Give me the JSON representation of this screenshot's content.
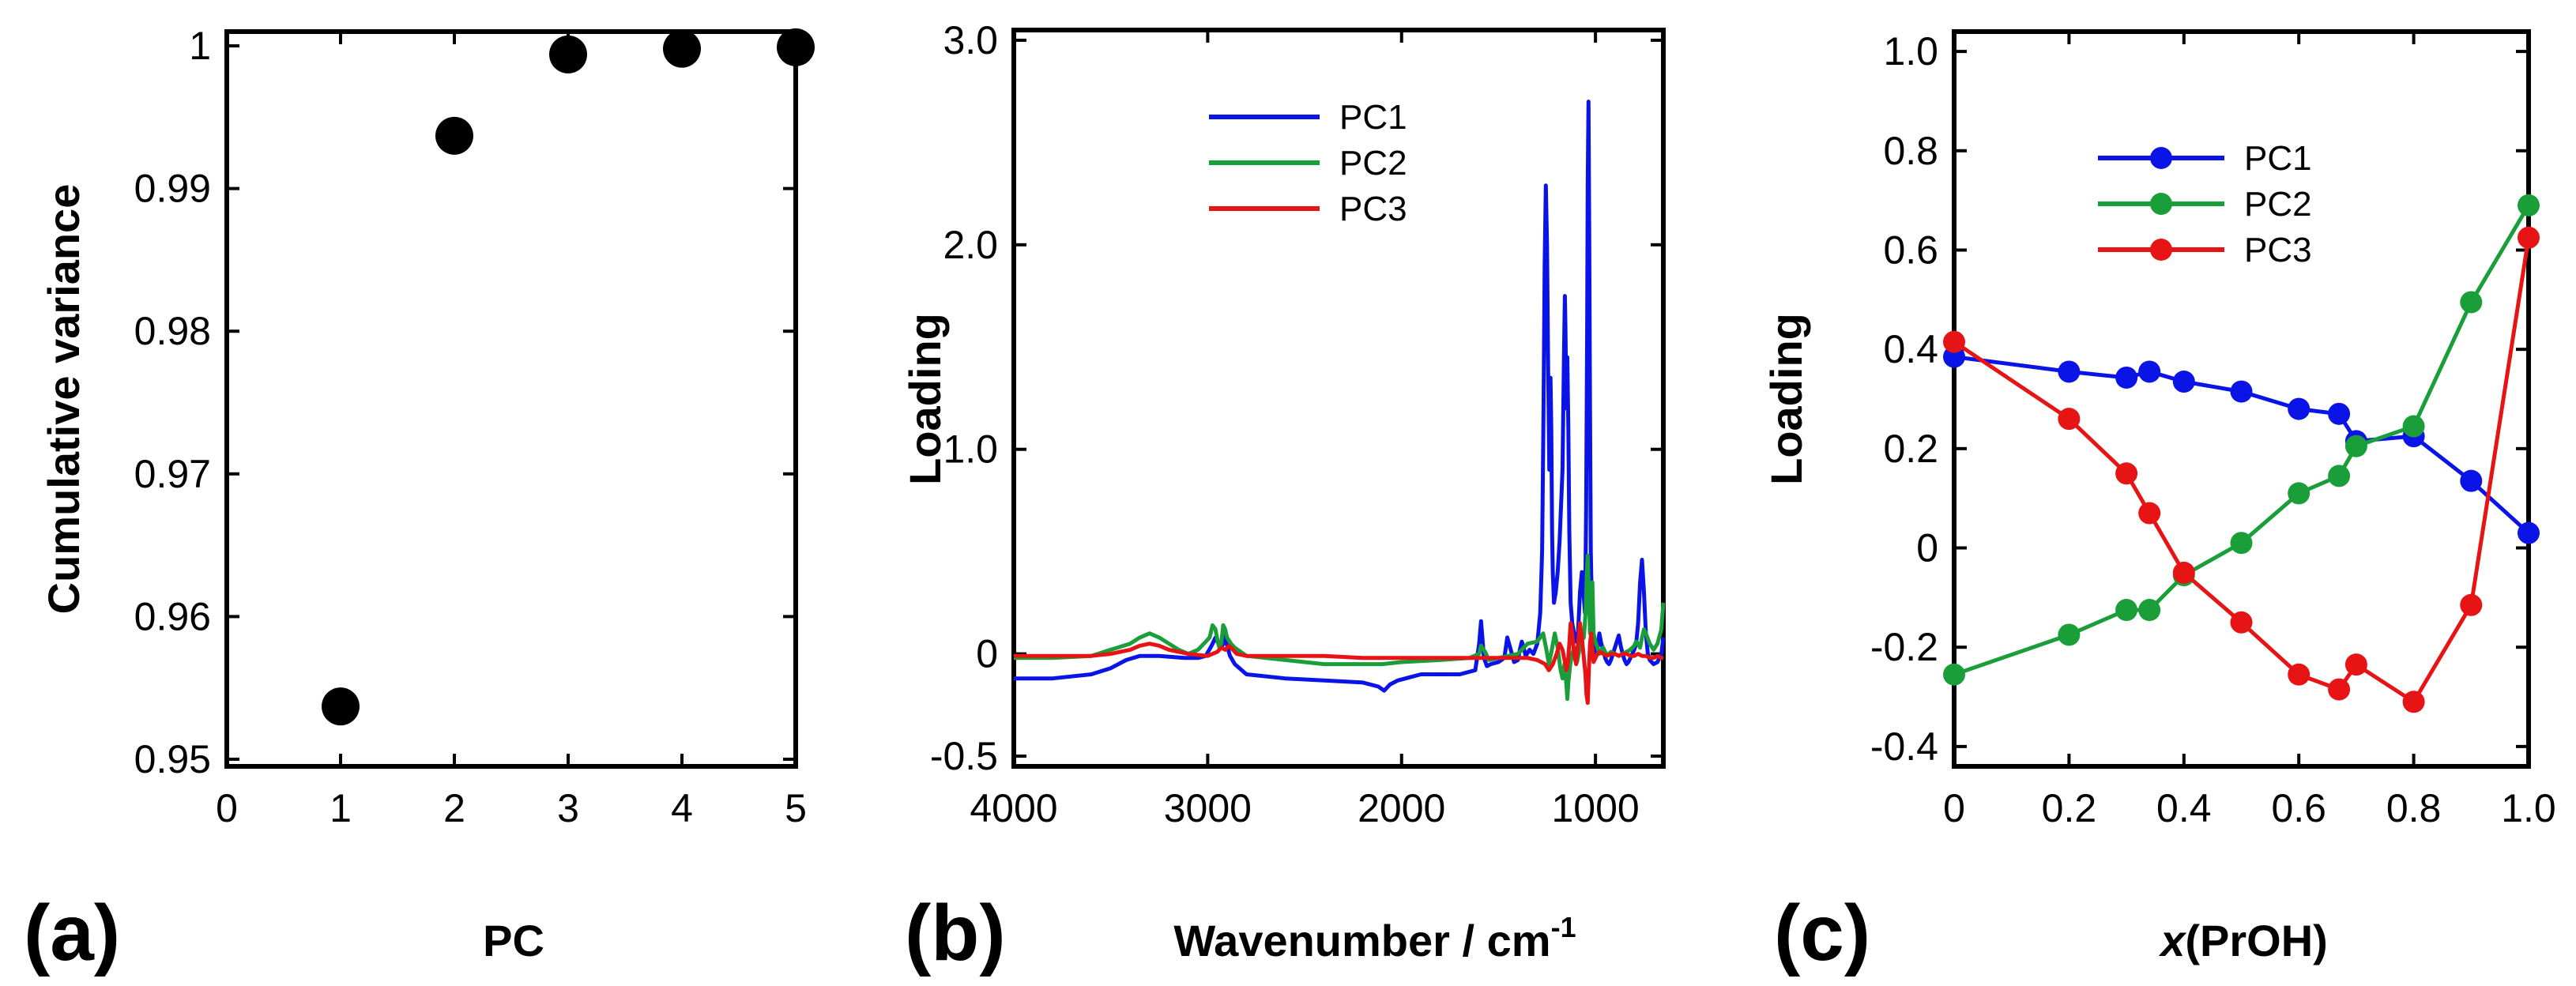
{
  "chart_data": [
    {
      "panel_label": "(a)",
      "type": "scatter",
      "xlabel": "PC",
      "ylabel": "Cumulative variance",
      "xlim": [
        0,
        5
      ],
      "ylim": [
        0.9495,
        1.001
      ],
      "x_ticks": [
        0,
        1,
        2,
        3,
        4,
        5
      ],
      "x_tick_labels": [
        "0",
        "1",
        "2",
        "3",
        "4",
        "5"
      ],
      "y_ticks": [
        0.95,
        0.96,
        0.97,
        0.98,
        0.99,
        1
      ],
      "y_tick_labels": [
        "0.95",
        "0.96",
        "0.97",
        "0.98",
        "0.99",
        "1"
      ],
      "series": [
        {
          "name": "Cumulative variance",
          "color": "#000000",
          "x": [
            1,
            2,
            3,
            4,
            5
          ],
          "y": [
            0.9537,
            0.9937,
            0.9994,
            0.9998,
            0.9999
          ]
        }
      ]
    },
    {
      "panel_label": "(b)",
      "type": "line",
      "xlabel": "Wavenumber / cm",
      "xlabel_superscript": "-1",
      "ylabel": "Loading",
      "xlim": [
        4000,
        650
      ],
      "ylim": [
        -0.55,
        3.05
      ],
      "x_ticks": [
        4000,
        3000,
        2000,
        1000
      ],
      "x_tick_labels": [
        "4000",
        "3000",
        "2000",
        "1000"
      ],
      "y_ticks": [
        3.0,
        2.0,
        1.0,
        0,
        -0.5
      ],
      "y_tick_labels": [
        "3.0",
        "2.0",
        "1.0",
        "0",
        "-0.5"
      ],
      "legend_position": "upper-center",
      "series": [
        {
          "name": "PC1",
          "color": "#0a14e6",
          "x": [
            4000,
            3800,
            3600,
            3500,
            3420,
            3350,
            3250,
            3120,
            3050,
            3010,
            2980,
            2960,
            2945,
            2930,
            2920,
            2910,
            2900,
            2885,
            2860,
            2800,
            2600,
            2400,
            2200,
            2120,
            2090,
            2060,
            2020,
            1900,
            1700,
            1620,
            1600,
            1590,
            1580,
            1575,
            1560,
            1540,
            1500,
            1470,
            1455,
            1440,
            1420,
            1400,
            1390,
            1380,
            1370,
            1360,
            1340,
            1320,
            1300,
            1285,
            1275,
            1268,
            1262,
            1256,
            1250,
            1244,
            1238,
            1232,
            1228,
            1224,
            1220,
            1214,
            1205,
            1195,
            1185,
            1170,
            1162,
            1158,
            1155,
            1150,
            1145,
            1140,
            1135,
            1128,
            1120,
            1110,
            1100,
            1090,
            1080,
            1070,
            1062,
            1054,
            1048,
            1043,
            1040,
            1036,
            1032,
            1028,
            1024,
            1018,
            1010,
            1000,
            990,
            980,
            970,
            960,
            950,
            940,
            930,
            920,
            910,
            900,
            890,
            880,
            870,
            860,
            850,
            840,
            830,
            820,
            810,
            800,
            790,
            780,
            770,
            760,
            750,
            740,
            730,
            720,
            700,
            680,
            660,
            650
          ],
          "y": [
            -0.12,
            -0.12,
            -0.1,
            -0.07,
            -0.03,
            -0.01,
            -0.01,
            -0.02,
            -0.02,
            -0.01,
            0.04,
            0.08,
            0.05,
            0.03,
            0.05,
            0.09,
            0.04,
            -0.01,
            -0.05,
            -0.1,
            -0.12,
            -0.13,
            -0.14,
            -0.16,
            -0.18,
            -0.15,
            -0.13,
            -0.1,
            -0.1,
            -0.08,
            0.05,
            0.16,
            0.04,
            -0.02,
            -0.06,
            -0.05,
            -0.04,
            -0.02,
            0.08,
            0.03,
            -0.04,
            -0.03,
            0.02,
            0.06,
            0.03,
            -0.01,
            0.02,
            0.0,
            0.05,
            0.2,
            0.5,
            1.2,
            1.9,
            2.29,
            2.0,
            1.4,
            0.9,
            1.35,
            1.1,
            0.6,
            0.4,
            0.25,
            0.3,
            0.4,
            0.55,
            0.9,
            1.5,
            1.75,
            1.6,
            1.2,
            1.45,
            1.1,
            0.6,
            0.25,
            0.15,
            0.1,
            0.06,
            0.1,
            0.3,
            0.4,
            0.3,
            0.2,
            0.7,
            1.6,
            2.3,
            2.7,
            2.0,
            1.2,
            0.5,
            0.2,
            0.05,
            0.0,
            0.02,
            0.1,
            0.05,
            0.02,
            -0.02,
            -0.04,
            -0.05,
            -0.03,
            0.0,
            0.03,
            0.06,
            0.09,
            0.04,
            0.0,
            -0.03,
            -0.05,
            -0.04,
            -0.02,
            0.0,
            0.02,
            0.05,
            0.15,
            0.35,
            0.46,
            0.3,
            0.1,
            0.0,
            -0.03,
            -0.05,
            -0.04,
            0.0,
            0.08
          ]
        },
        {
          "name": "PC2",
          "color": "#1a9e3a",
          "x": [
            4000,
            3800,
            3600,
            3500,
            3400,
            3350,
            3300,
            3250,
            3200,
            3150,
            3100,
            3050,
            3020,
            2990,
            2975,
            2960,
            2950,
            2940,
            2930,
            2920,
            2910,
            2900,
            2880,
            2860,
            2800,
            2600,
            2400,
            2200,
            2100,
            2000,
            1800,
            1650,
            1600,
            1590,
            1570,
            1550,
            1500,
            1450,
            1400,
            1380,
            1350,
            1300,
            1270,
            1255,
            1240,
            1225,
            1210,
            1195,
            1180,
            1170,
            1160,
            1150,
            1145,
            1140,
            1130,
            1120,
            1110,
            1095,
            1075,
            1060,
            1050,
            1045,
            1040,
            1034,
            1028,
            1022,
            1016,
            1010,
            1000,
            990,
            980,
            970,
            960,
            950,
            940,
            930,
            920,
            900,
            880,
            860,
            840,
            820,
            800,
            790,
            780,
            770,
            760,
            750,
            740,
            720,
            700,
            680,
            660,
            650
          ],
          "y": [
            -0.02,
            -0.02,
            -0.01,
            0.02,
            0.05,
            0.08,
            0.1,
            0.08,
            0.05,
            0.02,
            0.0,
            0.02,
            0.05,
            0.08,
            0.14,
            0.12,
            0.07,
            0.03,
            0.05,
            0.14,
            0.12,
            0.08,
            0.05,
            0.03,
            -0.01,
            -0.03,
            -0.05,
            -0.05,
            -0.05,
            -0.04,
            -0.03,
            -0.02,
            0.0,
            0.04,
            0.01,
            -0.03,
            -0.02,
            -0.01,
            0.0,
            0.02,
            0.05,
            0.06,
            0.1,
            0.03,
            -0.05,
            0.02,
            0.1,
            0.03,
            -0.08,
            -0.12,
            -0.05,
            -0.15,
            -0.22,
            -0.14,
            -0.05,
            0.0,
            0.03,
            -0.04,
            0.06,
            0.08,
            0.22,
            0.38,
            0.48,
            0.3,
            0.1,
            0.2,
            0.35,
            0.1,
            0.06,
            0.03,
            0.0,
            0.02,
            0.03,
            0.01,
            -0.01,
            0.0,
            0.01,
            0.0,
            -0.01,
            0.0,
            0.01,
            0.02,
            0.04,
            0.06,
            0.05,
            0.03,
            0.08,
            0.12,
            0.1,
            0.05,
            0.02,
            0.05,
            0.12,
            0.25
          ]
        },
        {
          "name": "PC3",
          "color": "#e61414",
          "x": [
            4000,
            3800,
            3600,
            3500,
            3400,
            3350,
            3300,
            3250,
            3200,
            3100,
            3000,
            2950,
            2930,
            2910,
            2890,
            2870,
            2850,
            2800,
            2600,
            2400,
            2200,
            2000,
            1800,
            1600,
            1500,
            1400,
            1350,
            1300,
            1260,
            1240,
            1220,
            1200,
            1185,
            1170,
            1160,
            1150,
            1142,
            1135,
            1128,
            1120,
            1110,
            1100,
            1090,
            1080,
            1070,
            1060,
            1052,
            1046,
            1040,
            1034,
            1028,
            1022,
            1016,
            1010,
            1000,
            990,
            980,
            960,
            940,
            920,
            900,
            880,
            860,
            840,
            820,
            800,
            780,
            760,
            740,
            720,
            700,
            680,
            660,
            650
          ],
          "y": [
            -0.01,
            -0.01,
            -0.01,
            0.0,
            0.02,
            0.04,
            0.05,
            0.04,
            0.02,
            0.0,
            -0.01,
            0.01,
            0.03,
            0.02,
            0.04,
            0.02,
            0.0,
            -0.01,
            -0.01,
            -0.01,
            -0.02,
            -0.02,
            -0.02,
            -0.02,
            -0.02,
            -0.02,
            -0.02,
            -0.03,
            -0.05,
            -0.08,
            -0.05,
            0.0,
            0.05,
            0.02,
            -0.03,
            -0.08,
            -0.04,
            0.05,
            0.15,
            0.1,
            0.0,
            -0.05,
            0.05,
            0.15,
            0.08,
            -0.02,
            -0.1,
            -0.2,
            -0.24,
            -0.08,
            0.05,
            0.1,
            0.02,
            -0.04,
            -0.02,
            0.0,
            0.01,
            0.0,
            -0.01,
            0.0,
            0.0,
            -0.01,
            0.0,
            0.0,
            -0.01,
            -0.01,
            0.0,
            -0.01,
            -0.01,
            -0.02,
            -0.02,
            -0.01,
            -0.02,
            -0.02
          ]
        }
      ]
    },
    {
      "panel_label": "(c)",
      "type": "line",
      "xlabel_italic": "x",
      "xlabel": "(PrOH)",
      "ylabel": "Loading",
      "xlim": [
        0,
        1.0
      ],
      "ylim": [
        -0.44,
        1.04
      ],
      "x_ticks": [
        0,
        0.2,
        0.4,
        0.6,
        0.8,
        1.0
      ],
      "x_tick_labels": [
        "0",
        "0.2",
        "0.4",
        "0.6",
        "0.8",
        "1.0"
      ],
      "y_ticks": [
        1.0,
        0.8,
        0.6,
        0.4,
        0.2,
        0,
        -0.2,
        -0.4
      ],
      "y_tick_labels": [
        "1.0",
        "0.8",
        "0.6",
        "0.4",
        "0.2",
        "0",
        "-0.2",
        "-0.4"
      ],
      "legend_position": "upper-center",
      "series": [
        {
          "name": "PC1",
          "color": "#0a14e6",
          "x": [
            0,
            0.2,
            0.3,
            0.34,
            0.4,
            0.5,
            0.6,
            0.67,
            0.7,
            0.8,
            0.9,
            1.0
          ],
          "y": [
            0.385,
            0.355,
            0.343,
            0.355,
            0.335,
            0.315,
            0.28,
            0.27,
            0.215,
            0.225,
            0.135,
            0.03
          ]
        },
        {
          "name": "PC2",
          "color": "#1a9e3a",
          "x": [
            0,
            0.2,
            0.3,
            0.34,
            0.4,
            0.5,
            0.6,
            0.67,
            0.7,
            0.8,
            0.9,
            1.0
          ],
          "y": [
            -0.255,
            -0.175,
            -0.125,
            -0.125,
            -0.055,
            0.01,
            0.11,
            0.145,
            0.205,
            0.245,
            0.495,
            0.69
          ]
        },
        {
          "name": "PC3",
          "color": "#e61414",
          "x": [
            0,
            0.2,
            0.3,
            0.34,
            0.4,
            0.5,
            0.6,
            0.67,
            0.7,
            0.8,
            0.9,
            1.0
          ],
          "y": [
            0.415,
            0.26,
            0.15,
            0.07,
            -0.05,
            -0.15,
            -0.255,
            -0.285,
            -0.235,
            -0.31,
            -0.115,
            0.625
          ]
        }
      ]
    }
  ]
}
